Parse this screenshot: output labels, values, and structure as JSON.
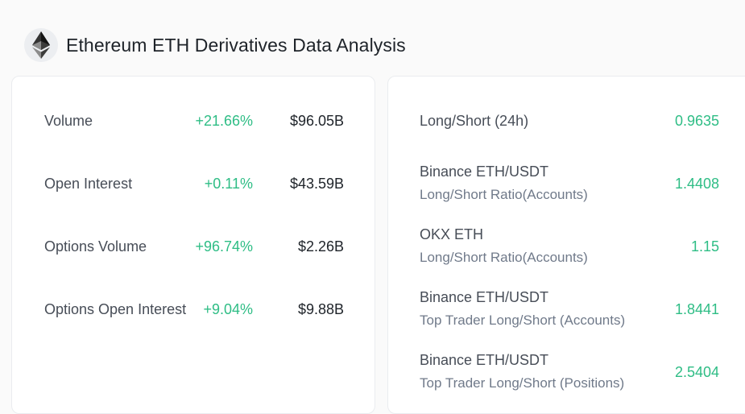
{
  "header": {
    "logo": "ethereum-icon",
    "title": "Ethereum ETH Derivatives Data Analysis"
  },
  "colors": {
    "positive": "#2ebd85",
    "text_primary": "#1e2329",
    "text_secondary": "#707a8a"
  },
  "left_panel": {
    "rows": [
      {
        "label": "Volume",
        "change": "+21.66%",
        "value": "$96.05B"
      },
      {
        "label": "Open Interest",
        "change": "+0.11%",
        "value": "$43.59B"
      },
      {
        "label": "Options Volume",
        "change": "+96.74%",
        "value": "$2.26B"
      },
      {
        "label": "Options Open Interest",
        "change": "+9.04%",
        "value": "$9.88B"
      }
    ]
  },
  "right_panel": {
    "rows": [
      {
        "line1": "Long/Short (24h)",
        "line2": "",
        "value": "0.9635"
      },
      {
        "line1": "Binance ETH/USDT",
        "line2": "Long/Short Ratio(Accounts)",
        "value": "1.4408"
      },
      {
        "line1": "OKX ETH",
        "line2": "Long/Short Ratio(Accounts)",
        "value": "1.15"
      },
      {
        "line1": "Binance ETH/USDT",
        "line2": "Top Trader Long/Short (Accounts)",
        "value": "1.8441"
      },
      {
        "line1": "Binance ETH/USDT",
        "line2": "Top Trader Long/Short (Positions)",
        "value": "2.5404"
      }
    ]
  }
}
